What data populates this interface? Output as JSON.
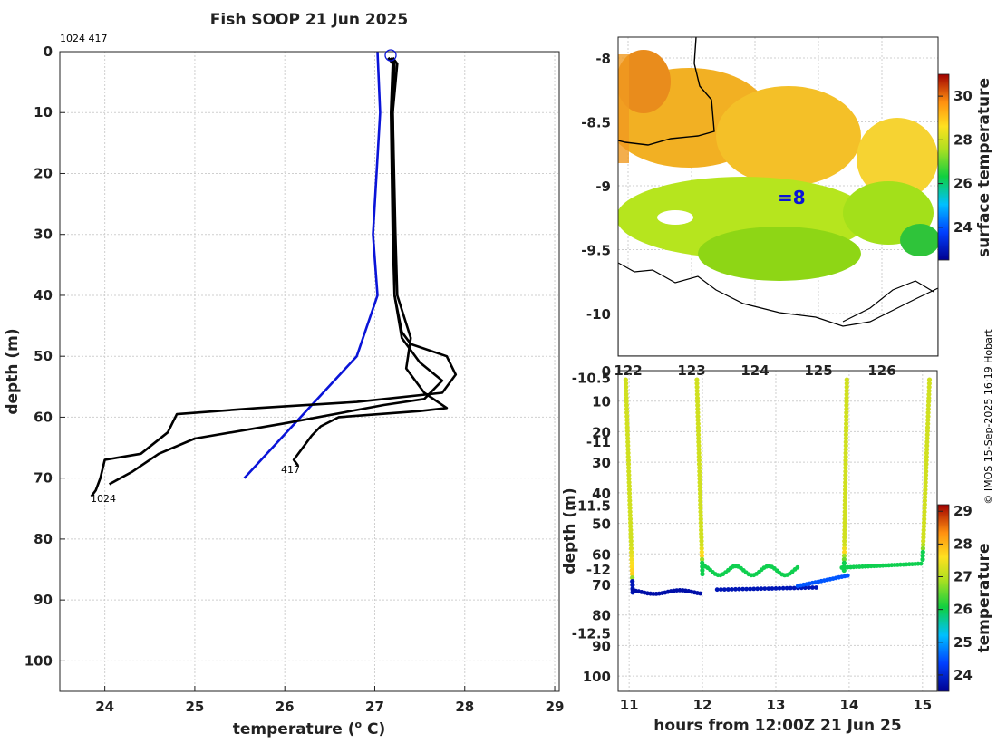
{
  "colors": {
    "profile": "#000000",
    "climatology": "#0a14d8",
    "start_marker": "#0a14d8"
  },
  "chart_data": [
    {
      "type": "line",
      "title": "Fish SOOP 21 Jun 2025",
      "xlabel": "temperature (",
      "xlabel_sup": "o",
      "xlabel_end": " C)",
      "ylabel": "depth (m)",
      "xlim": [
        23.5,
        29.05
      ],
      "ylim": [
        0,
        105
      ],
      "x_ticks": [
        "24",
        "25",
        "26",
        "27",
        "28",
        "29"
      ],
      "y_ticks": [
        "0",
        "10",
        "20",
        "30",
        "40",
        "50",
        "60",
        "70",
        "80",
        "90",
        "100"
      ],
      "profile_ids": "1024 417",
      "label_start": "1024",
      "label_end": "417",
      "series": [
        {
          "name": "climatology",
          "points": [
            [
              27.03,
              0
            ],
            [
              27.06,
              10
            ],
            [
              26.98,
              30
            ],
            [
              27.03,
              40
            ],
            [
              26.8,
              50
            ],
            [
              25.55,
              70
            ]
          ]
        },
        {
          "name": "profile-1024",
          "points": [
            [
              27.15,
              1
            ],
            [
              27.2,
              2
            ],
            [
              27.18,
              10
            ],
            [
              27.2,
              30
            ],
            [
              27.22,
              40
            ],
            [
              27.3,
              46
            ],
            [
              27.4,
              48
            ],
            [
              27.8,
              50
            ],
            [
              27.9,
              53
            ],
            [
              27.75,
              56
            ],
            [
              26.8,
              57.5
            ],
            [
              25.7,
              58.5
            ],
            [
              24.8,
              59.5
            ],
            [
              24.7,
              62.5
            ],
            [
              24.4,
              66
            ],
            [
              24.0,
              67
            ],
            [
              23.95,
              70
            ],
            [
              23.9,
              72
            ],
            [
              23.85,
              73
            ]
          ]
        },
        {
          "name": "profile-417",
          "points": [
            [
              27.2,
              1
            ],
            [
              27.25,
              2
            ],
            [
              27.2,
              10
            ],
            [
              27.23,
              30
            ],
            [
              27.25,
              40
            ],
            [
              27.4,
              47
            ],
            [
              27.35,
              52
            ],
            [
              27.55,
              56
            ],
            [
              27.8,
              58.5
            ],
            [
              27.5,
              59
            ],
            [
              26.6,
              60
            ],
            [
              26.4,
              61.5
            ],
            [
              26.3,
              63
            ],
            [
              26.2,
              65
            ],
            [
              26.1,
              67
            ],
            [
              26.15,
              68
            ]
          ]
        },
        {
          "name": "profile-mid",
          "points": [
            [
              27.18,
              1
            ],
            [
              27.22,
              2
            ],
            [
              27.2,
              10
            ],
            [
              27.22,
              30
            ],
            [
              27.22,
              40
            ],
            [
              27.3,
              47
            ],
            [
              27.5,
              51
            ],
            [
              27.75,
              54
            ],
            [
              27.55,
              57
            ],
            [
              27.1,
              58
            ],
            [
              26.0,
              61
            ],
            [
              25.0,
              63.5
            ],
            [
              24.6,
              66
            ],
            [
              24.3,
              69
            ],
            [
              24.05,
              71
            ]
          ]
        }
      ]
    },
    {
      "type": "heatmap",
      "colorbar_label": "surface temperature",
      "y_ticks": [
        "-8",
        "-8.5",
        "-9",
        "-9.5",
        "-10",
        "-10.5",
        "-11",
        "-11.5",
        "-12",
        "-12.5"
      ],
      "x_ticks": [
        "122",
        "123",
        "124",
        "125",
        "126"
      ],
      "colorbar_ticks": [
        "30",
        "28",
        "26",
        "24"
      ],
      "colorbar_range": [
        22.5,
        31
      ]
    },
    {
      "type": "scatter",
      "xlabel": "hours from 12:00Z 21 Jun 25",
      "ylabel": "depth (m)",
      "colorbar_label": "temperature",
      "xlim": [
        10.85,
        15.2
      ],
      "ylim": [
        0,
        105
      ],
      "x_ticks": [
        "11",
        "12",
        "13",
        "14",
        "15"
      ],
      "y_ticks": [
        "0",
        "10",
        "20",
        "30",
        "40",
        "50",
        "60",
        "70",
        "80",
        "90",
        "100"
      ],
      "colorbar_ticks": [
        "29",
        "28",
        "27",
        "26",
        "25",
        "24"
      ],
      "colorbar_range": [
        23.5,
        29.2
      ],
      "casts": [
        {
          "t_top": 10.95,
          "t_bottom": 11.05,
          "bottom": 73
        },
        {
          "t_top": 11.92,
          "t_bottom": 12.0,
          "bottom": 67
        },
        {
          "t_top": 13.97,
          "t_bottom": 13.93,
          "bottom": 66
        },
        {
          "t_top": 15.1,
          "t_bottom": 15.0,
          "bottom": 63
        }
      ]
    }
  ],
  "credit": "© IMOS 15-Sep-2025 16:19 Hobart"
}
